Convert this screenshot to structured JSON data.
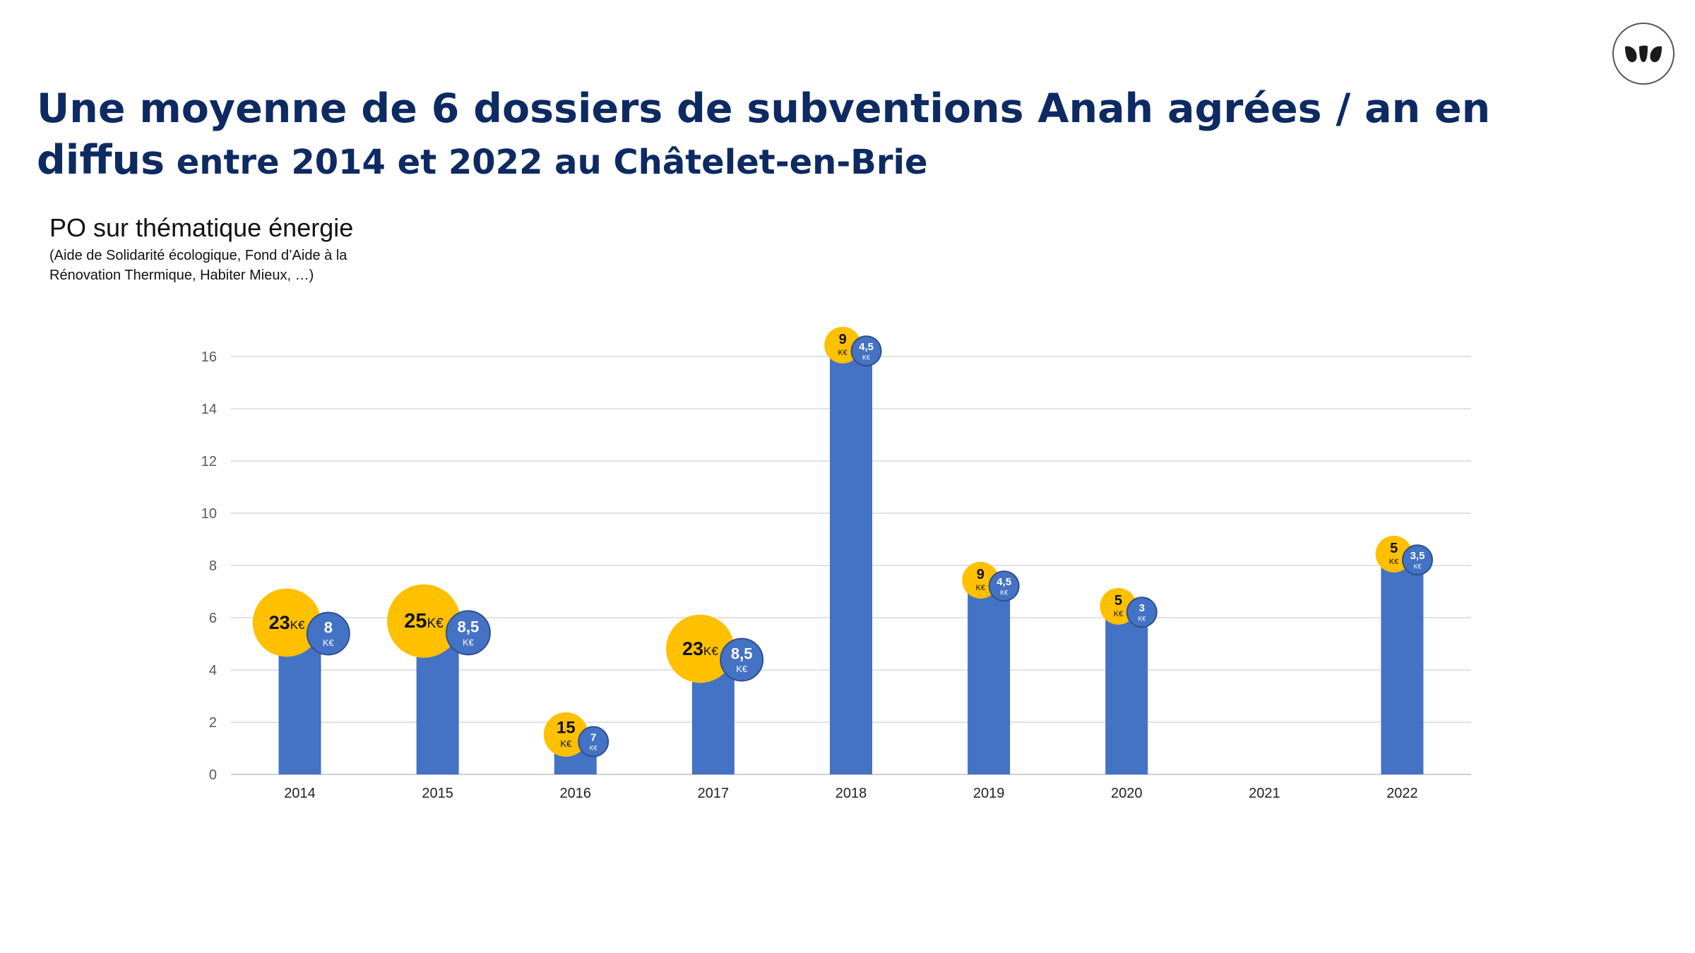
{
  "title": {
    "line1": "Une moyenne de 6 dossiers de subventions Anah agrées / an en",
    "line2_bold": "diffus",
    "line2_rest": " entre 2014 et 2022 au Châtelet-en-Brie"
  },
  "subtitle": "PO sur thématique énergie",
  "subnote": "(Aide de Solidarité écologique, Fond d’Aide à la Rénovation Thermique, Habiter Mieux, …)",
  "logo": {
    "icon": "leaf-logo-icon",
    "color": "#1b1b1b"
  },
  "colors": {
    "bar": "#4472c4",
    "yellow": "#ffc000",
    "blue_bubble": "#4472c4",
    "grid": "#d9d9d9",
    "title": "#0d2a62"
  },
  "chart_data": {
    "type": "bar",
    "categories": [
      "2014",
      "2015",
      "2016",
      "2017",
      "2018",
      "2019",
      "2020",
      "2021",
      "2022"
    ],
    "values": [
      5,
      5,
      1,
      4,
      16,
      7,
      6,
      0,
      8
    ],
    "ylim": [
      0,
      16
    ],
    "yticks": [
      "0",
      "2",
      "4",
      "6",
      "8",
      "10",
      "12",
      "14",
      "16"
    ],
    "grid": true,
    "annotations": [
      {
        "category": "2014",
        "yellow": "23",
        "yellow_unit": "K€",
        "blue": "8",
        "blue_unit": "K€"
      },
      {
        "category": "2015",
        "yellow": "25",
        "yellow_unit": "K€",
        "blue": "8,5",
        "blue_unit": "K€"
      },
      {
        "category": "2016",
        "yellow": "15",
        "yellow_unit": "K€",
        "blue": "7",
        "blue_unit": "K€"
      },
      {
        "category": "2017",
        "yellow": "23",
        "yellow_unit": "K€",
        "blue": "8,5",
        "blue_unit": "K€"
      },
      {
        "category": "2018",
        "yellow": "9",
        "yellow_unit": "K€",
        "blue": "4,5",
        "blue_unit": "K€"
      },
      {
        "category": "2019",
        "yellow": "9",
        "yellow_unit": "K€",
        "blue": "4,5",
        "blue_unit": "K€"
      },
      {
        "category": "2020",
        "yellow": "5",
        "yellow_unit": "K€",
        "blue": "3",
        "blue_unit": "K€"
      },
      {
        "category": "2022",
        "yellow": "5",
        "yellow_unit": "K€",
        "blue": "3,5",
        "blue_unit": "K€"
      }
    ]
  }
}
